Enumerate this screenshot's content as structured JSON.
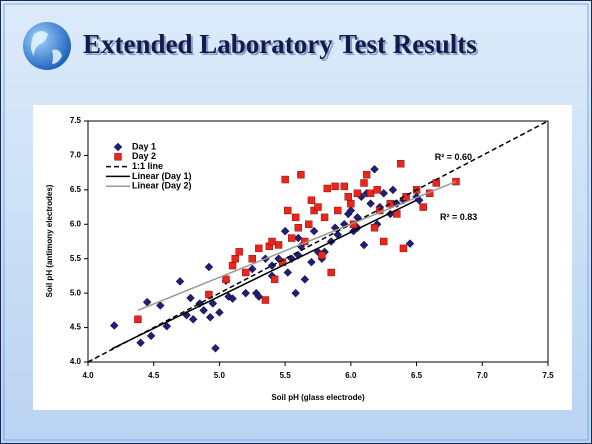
{
  "header": {
    "title": "Extended Laboratory Test Results"
  },
  "chart_data": {
    "type": "scatter",
    "xlabel": "Soil pH (glass electrode)",
    "ylabel": "Soil pH (antimony electrodes)",
    "xlim": [
      4.0,
      7.5
    ],
    "ylim": [
      4.0,
      7.5
    ],
    "xticks": [
      {
        "value": 4.0,
        "label": "4.0"
      },
      {
        "value": 4.5,
        "label": "4.5"
      },
      {
        "value": 5.0,
        "label": "5.0"
      },
      {
        "value": 5.5,
        "label": "5.5"
      },
      {
        "value": 6.0,
        "label": "6.0"
      },
      {
        "value": 6.5,
        "label": "6.5"
      },
      {
        "value": 7.0,
        "label": "7.0"
      },
      {
        "value": 7.5,
        "label": "7.5"
      }
    ],
    "yticks": [
      {
        "value": 4.0,
        "label": "4.0"
      },
      {
        "value": 4.5,
        "label": "4.5"
      },
      {
        "value": 5.0,
        "label": "5.0"
      },
      {
        "value": 5.5,
        "label": "5.5"
      },
      {
        "value": 6.0,
        "label": "6.0"
      },
      {
        "value": 6.5,
        "label": "6.5"
      },
      {
        "value": 7.0,
        "label": "7.0"
      },
      {
        "value": 7.5,
        "label": "7.5"
      }
    ],
    "grid": false,
    "legend": "top-left",
    "series": [
      {
        "name": "Day 1",
        "color": "#1f1f7a",
        "marker": "diamond",
        "x": [
          4.2,
          4.4,
          4.45,
          4.48,
          4.55,
          4.6,
          4.7,
          4.75,
          4.78,
          4.8,
          4.85,
          4.88,
          4.92,
          4.93,
          4.95,
          4.97,
          5.0,
          5.05,
          5.07,
          5.1,
          5.2,
          5.25,
          5.28,
          5.3,
          5.35,
          5.4,
          5.45,
          5.5,
          5.52,
          5.55,
          5.6,
          5.62,
          5.65,
          5.7,
          5.72,
          5.75,
          5.8,
          5.85,
          5.88,
          5.9,
          5.95,
          5.98,
          6.0,
          6.02,
          6.05,
          6.08,
          6.1,
          6.12,
          6.15,
          6.18,
          6.2,
          6.22,
          6.25,
          6.3,
          6.32,
          6.35,
          6.4,
          6.45,
          6.5,
          6.52,
          5.4,
          5.58,
          5.78,
          6.05,
          5.6
        ],
        "values": [
          4.53,
          4.28,
          4.87,
          4.38,
          4.82,
          4.52,
          5.17,
          4.68,
          4.93,
          4.62,
          4.85,
          4.75,
          5.38,
          4.65,
          4.85,
          4.2,
          4.72,
          5.18,
          4.95,
          4.92,
          5.0,
          5.35,
          5.0,
          4.95,
          5.5,
          5.25,
          5.5,
          5.9,
          5.3,
          5.5,
          5.55,
          5.68,
          5.2,
          5.45,
          5.9,
          5.6,
          5.6,
          5.75,
          5.95,
          5.85,
          6.0,
          6.15,
          6.2,
          5.9,
          6.1,
          6.4,
          5.7,
          6.45,
          6.3,
          6.8,
          6.0,
          6.25,
          6.45,
          6.15,
          6.5,
          6.3,
          6.35,
          5.72,
          6.4,
          6.35,
          5.4,
          5.0,
          5.5,
          5.95,
          5.8
        ]
      },
      {
        "name": "Day 2",
        "color": "#e8261c",
        "marker": "square",
        "x": [
          4.38,
          4.92,
          5.05,
          5.1,
          5.12,
          5.15,
          5.2,
          5.25,
          5.35,
          5.38,
          5.4,
          5.42,
          5.45,
          5.48,
          5.5,
          5.52,
          5.55,
          5.58,
          5.6,
          5.62,
          5.65,
          5.68,
          5.7,
          5.72,
          5.75,
          5.78,
          5.8,
          5.82,
          5.85,
          5.88,
          5.9,
          5.95,
          6.0,
          6.02,
          6.05,
          6.1,
          6.12,
          6.15,
          6.18,
          6.2,
          6.22,
          6.25,
          6.3,
          6.35,
          6.38,
          6.4,
          6.42,
          6.5,
          6.55,
          6.6,
          6.65,
          6.8,
          5.3,
          5.98
        ],
        "values": [
          4.62,
          4.98,
          5.2,
          5.4,
          5.5,
          5.6,
          5.3,
          5.5,
          4.9,
          5.68,
          5.75,
          5.2,
          5.7,
          5.45,
          6.65,
          6.2,
          5.8,
          6.1,
          5.95,
          6.72,
          5.75,
          6.0,
          6.35,
          6.2,
          6.25,
          5.55,
          6.1,
          6.52,
          5.3,
          6.55,
          6.2,
          6.55,
          6.3,
          6.0,
          6.45,
          6.6,
          6.72,
          6.45,
          5.95,
          6.5,
          6.2,
          5.75,
          6.3,
          6.15,
          6.88,
          5.65,
          6.4,
          6.5,
          6.25,
          6.45,
          6.6,
          6.62,
          5.65,
          6.4
        ]
      },
      {
        "name": "1:1 line",
        "color": "#000000",
        "marker": "dashed",
        "x": [
          4.0,
          7.5
        ],
        "values": [
          4.0,
          7.5
        ]
      },
      {
        "name": "Linear (Day 1)",
        "color": "#000000",
        "marker": "solid",
        "x": [
          4.18,
          6.5
        ],
        "values": [
          4.19,
          6.35
        ]
      },
      {
        "name": "Linear (Day 2)",
        "color": "#999999",
        "marker": "solid",
        "x": [
          4.38,
          6.8
        ],
        "values": [
          4.75,
          6.62
        ]
      }
    ],
    "annotations": [
      {
        "text": "R² = 0.60",
        "x": 6.78,
        "y": 6.97
      },
      {
        "text": "R² = 0.83",
        "x": 6.82,
        "y": 6.1
      }
    ]
  }
}
